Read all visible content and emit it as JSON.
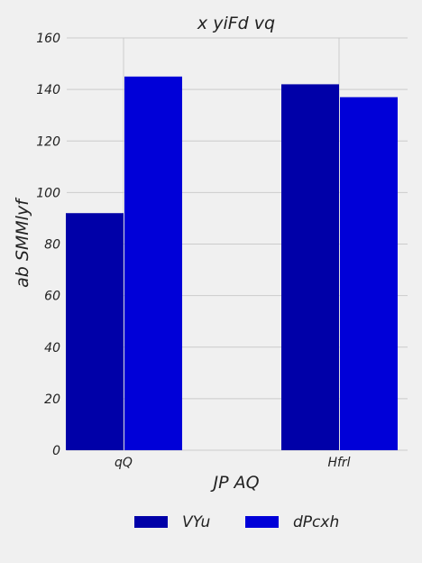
{
  "chart_data": {
    "type": "bar",
    "title": "x yiFd vq",
    "xlabel": "JP AQ",
    "ylabel": "ab SMMlyf",
    "categories": [
      "qQ",
      "Hfrl"
    ],
    "series": [
      {
        "name": "VYu",
        "values": [
          92,
          142
        ],
        "color": "#0000a8"
      },
      {
        "name": "dPcxh",
        "values": [
          145,
          137
        ],
        "color": "#0000d8"
      }
    ],
    "ylim": [
      0,
      160
    ],
    "yticks": [
      0,
      20,
      40,
      60,
      80,
      100,
      120,
      140,
      160
    ],
    "grid": true,
    "legend_position": "bottom"
  }
}
